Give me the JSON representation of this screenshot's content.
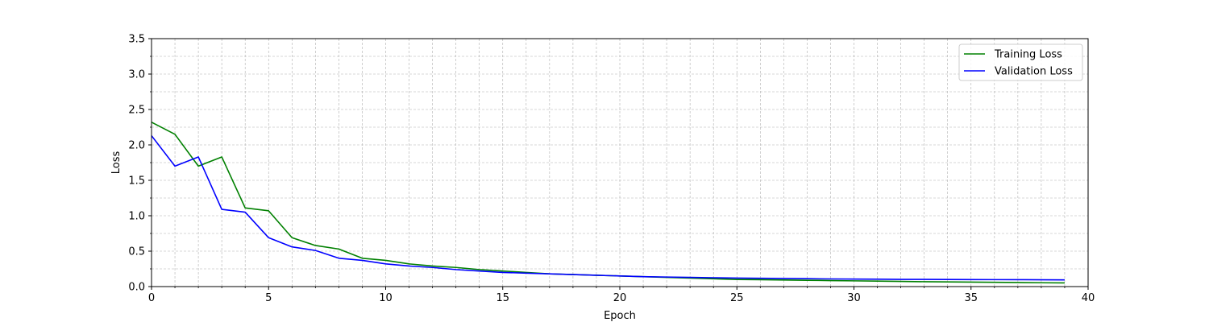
{
  "chart_data": {
    "type": "line",
    "title": "",
    "xlabel": "Epoch",
    "ylabel": "Loss",
    "xlim": [
      0,
      40
    ],
    "ylim": [
      0,
      3.5
    ],
    "x_ticks": [
      "0",
      "5",
      "10",
      "15",
      "20",
      "25",
      "30",
      "35",
      "40"
    ],
    "y_ticks": [
      "0.0",
      "0.5",
      "1.0",
      "1.5",
      "2.0",
      "2.5",
      "3.0",
      "3.5"
    ],
    "grid": true,
    "grid_style": "dashed, major and minor",
    "legend_position": "top-right",
    "x": [
      0,
      1,
      2,
      3,
      4,
      5,
      6,
      7,
      8,
      9,
      10,
      11,
      12,
      13,
      14,
      15,
      16,
      17,
      18,
      19,
      20,
      21,
      22,
      23,
      24,
      25,
      26,
      27,
      28,
      29,
      30,
      31,
      32,
      33,
      34,
      35,
      36,
      37,
      38,
      39
    ],
    "series": [
      {
        "name": "Training Loss",
        "color": "#008000",
        "values": [
          2.32,
          2.15,
          1.7,
          1.83,
          1.11,
          1.07,
          0.69,
          0.58,
          0.53,
          0.4,
          0.37,
          0.32,
          0.29,
          0.27,
          0.24,
          0.22,
          0.2,
          0.18,
          0.17,
          0.16,
          0.15,
          0.14,
          0.13,
          0.12,
          0.11,
          0.1,
          0.097,
          0.093,
          0.089,
          0.085,
          0.081,
          0.077,
          0.073,
          0.069,
          0.066,
          0.063,
          0.06,
          0.057,
          0.054,
          0.052
        ]
      },
      {
        "name": "Validation Loss",
        "color": "#0000ff",
        "values": [
          2.13,
          1.7,
          1.83,
          1.09,
          1.05,
          0.69,
          0.56,
          0.51,
          0.4,
          0.37,
          0.32,
          0.29,
          0.27,
          0.24,
          0.22,
          0.2,
          0.19,
          0.18,
          0.17,
          0.16,
          0.15,
          0.14,
          0.135,
          0.13,
          0.125,
          0.12,
          0.117,
          0.114,
          0.111,
          0.108,
          0.106,
          0.104,
          0.102,
          0.101,
          0.1,
          0.099,
          0.098,
          0.097,
          0.096,
          0.095
        ]
      }
    ]
  }
}
